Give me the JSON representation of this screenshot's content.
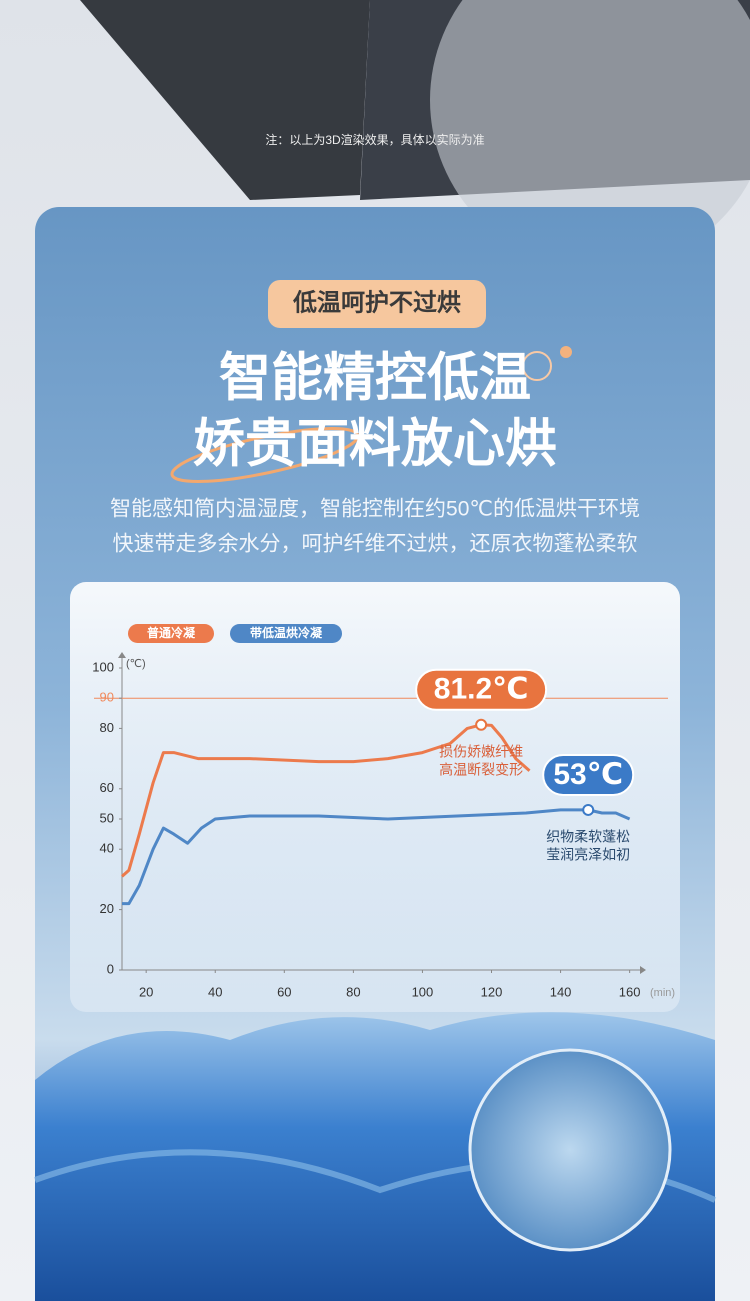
{
  "note": "注：以上为3D渲染效果，具体以实际为准",
  "badge": "低温呵护不过烘",
  "headline": [
    "智能精控低温",
    "娇贵面料放心烘"
  ],
  "description": [
    "智能感知筒内温湿度，智能控制在约50℃的低温烘干环境",
    "快速带走多余水分，呵护纤维不过烘，还原衣物蓬松柔软"
  ],
  "chart_data": {
    "type": "line",
    "x_unit": "(min)",
    "y_unit": "(℃)",
    "xlim": [
      13,
      163
    ],
    "xticks": [
      20,
      40,
      60,
      80,
      100,
      120,
      140,
      160
    ],
    "ylim": [
      0,
      100
    ],
    "yticks": [
      0,
      20,
      40,
      50,
      60,
      80,
      90,
      100
    ],
    "reference_line": {
      "value": 90,
      "color": "#f08a5d"
    },
    "series": [
      {
        "name": "普通冷凝",
        "color": "#ec7a4c",
        "x": [
          13,
          15,
          18,
          22,
          25,
          28,
          35,
          50,
          70,
          80,
          90,
          100,
          108,
          113,
          117,
          120,
          123,
          127,
          131
        ],
        "values": [
          31,
          33,
          45,
          62,
          72,
          72,
          70,
          70,
          69,
          69,
          70,
          72,
          75,
          80,
          81.2,
          81,
          77,
          70,
          66
        ]
      },
      {
        "name": "带低温烘冷凝",
        "color": "#4f87c6",
        "x": [
          13,
          15,
          18,
          22,
          25,
          28,
          32,
          36,
          40,
          50,
          70,
          90,
          110,
          130,
          140,
          148,
          152,
          156,
          160
        ],
        "values": [
          22,
          22,
          28,
          40,
          47,
          45,
          42,
          47,
          50,
          51,
          51,
          50,
          51,
          52,
          53,
          53,
          52,
          52,
          50
        ]
      }
    ],
    "annotations": [
      {
        "label": "81.2℃",
        "x": 117,
        "y": 81.2,
        "color": "#e8743f",
        "notes": [
          "损伤娇嫩纤维",
          "高温断裂变形"
        ],
        "note_color": "#d9603a"
      },
      {
        "label": "53℃",
        "x": 148,
        "y": 53,
        "color": "#3b7ac7",
        "notes": [
          "织物柔软蓬松",
          "莹润亮泽如初"
        ],
        "note_color": "#2a4a6e"
      }
    ]
  }
}
